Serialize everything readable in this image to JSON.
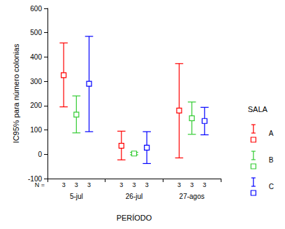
{
  "chart_data": {
    "type": "errorbar",
    "y_label": "IC95% para número colonias",
    "x_label": "PERÍODO",
    "categories": [
      "5-jul",
      "26-jul",
      "27-agos"
    ],
    "ylim": [
      -100,
      600
    ],
    "yticks": [
      -100,
      0,
      100,
      200,
      300,
      400,
      500,
      600
    ],
    "grid": false,
    "legend": "right",
    "legend_title": "SALA",
    "n_label": "N =",
    "series": [
      {
        "name": "A",
        "color": "#ff0000",
        "values": [
          325,
          35,
          180
        ],
        "ci_lower": [
          195,
          -23,
          -15
        ],
        "ci_upper": [
          458,
          95,
          373
        ],
        "n": [
          3,
          3,
          3
        ]
      },
      {
        "name": "B",
        "color": "#33cc33",
        "values": [
          163,
          3,
          148
        ],
        "ci_lower": [
          88,
          -2,
          82
        ],
        "ci_upper": [
          240,
          8,
          215
        ],
        "n": [
          3,
          3,
          3
        ]
      },
      {
        "name": "C",
        "color": "#0000ff",
        "values": [
          290,
          27,
          137
        ],
        "ci_lower": [
          93,
          -38,
          80
        ],
        "ci_upper": [
          485,
          93,
          193
        ],
        "n": [
          3,
          3,
          3
        ]
      }
    ]
  }
}
